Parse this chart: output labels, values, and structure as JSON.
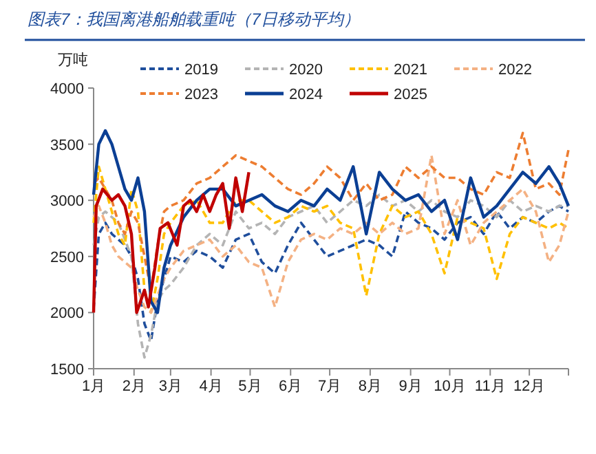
{
  "chart_data": {
    "type": "line",
    "title": "图表7：我国离港船舶载重吨（7日移动平均）",
    "ylabel": "万吨",
    "x": [
      "--01-01",
      "--01-05",
      "--01-10",
      "--01-15",
      "--01-20",
      "--01-25",
      "--01-30",
      "--02-04",
      "--02-09",
      "--02-14",
      "--02-19",
      "--02-24",
      "--03-01",
      "--03-11",
      "--03-21",
      "--03-31",
      "--04-10",
      "--04-20",
      "--04-30",
      "--05-10",
      "--05-20",
      "--05-30",
      "--06-09",
      "--06-19",
      "--06-29",
      "--07-09",
      "--07-19",
      "--07-29",
      "--08-08",
      "--08-18",
      "--08-28",
      "--09-07",
      "--09-17",
      "--09-27",
      "--10-07",
      "--10-17",
      "--10-27",
      "--11-06",
      "--11-16",
      "--11-26",
      "--12-06",
      "--12-16",
      "--12-24",
      "--12-31"
    ],
    "xlim": [
      "--01-01",
      "--12-31"
    ],
    "xticks": [
      {
        "value": "--01-01",
        "label": "1月"
      },
      {
        "value": "--02-01",
        "label": "2月"
      },
      {
        "value": "--03-01",
        "label": "3月"
      },
      {
        "value": "--04-01",
        "label": "4月"
      },
      {
        "value": "--05-01",
        "label": "5月"
      },
      {
        "value": "--06-01",
        "label": "6月"
      },
      {
        "value": "--07-01",
        "label": "7月"
      },
      {
        "value": "--08-01",
        "label": "8月"
      },
      {
        "value": "--09-01",
        "label": "9月"
      },
      {
        "value": "--10-01",
        "label": "10月"
      },
      {
        "value": "--11-01",
        "label": "11月"
      },
      {
        "value": "--12-01",
        "label": "12月"
      },
      {
        "value": "--12-31",
        "label": null
      }
    ],
    "ylim": [
      1500,
      4000
    ],
    "yticks": [
      1500,
      2000,
      2500,
      3000,
      3500,
      4000
    ],
    "grid": false,
    "legend": "top",
    "marker": "none",
    "series": [
      {
        "name": "2019",
        "color": "#1f4e9c",
        "line_style": "dashed",
        "values": [
          2030,
          2700,
          2800,
          2700,
          2650,
          2600,
          2500,
          2300,
          1900,
          1750,
          2100,
          2300,
          2500,
          2450,
          2550,
          2500,
          2400,
          2650,
          2700,
          2450,
          2350,
          2600,
          2800,
          2650,
          2500,
          2550,
          2600,
          2650,
          2600,
          2500,
          2900,
          2800,
          2750,
          2650,
          2800,
          2850,
          2700,
          2900,
          2750,
          2850,
          2800,
          2900,
          2950,
          2900
        ]
      },
      {
        "name": "2020",
        "color": "#b4b4b4",
        "line_style": "dashed",
        "values": [
          2600,
          2850,
          2900,
          2850,
          2800,
          2650,
          2500,
          1900,
          1600,
          1800,
          2100,
          2200,
          2250,
          2400,
          2600,
          2700,
          2600,
          2900,
          2750,
          2800,
          2700,
          2850,
          2900,
          2950,
          2800,
          2900,
          3000,
          2950,
          3050,
          2950,
          3000,
          2900,
          3000,
          2900,
          2850,
          3000,
          2950,
          2850,
          3000,
          2900,
          2950,
          2900,
          2950,
          2950
        ]
      },
      {
        "name": "2021",
        "color": "#ffc000",
        "line_style": "dashed",
        "values": [
          2800,
          3300,
          3100,
          2900,
          2700,
          2600,
          3100,
          2900,
          2200,
          2000,
          2300,
          2700,
          2800,
          2950,
          3000,
          2800,
          2800,
          3000,
          3000,
          2900,
          2800,
          2850,
          2950,
          2900,
          2950,
          2800,
          2750,
          2150,
          2700,
          2950,
          2850,
          2900,
          2700,
          2350,
          2850,
          2800,
          2750,
          2300,
          2700,
          2850,
          2800,
          2750,
          2800,
          2750
        ]
      },
      {
        "name": "2022",
        "color": "#f4b183",
        "line_style": "dashed",
        "values": [
          2850,
          2950,
          2800,
          2600,
          2500,
          2450,
          2400,
          2200,
          2050,
          2000,
          2150,
          2300,
          2400,
          2550,
          2600,
          2650,
          2500,
          2600,
          2450,
          2400,
          2050,
          2450,
          2650,
          2700,
          2650,
          2750,
          2700,
          2800,
          2700,
          2800,
          2700,
          2750,
          3400,
          2700,
          3000,
          2600,
          2800,
          2900,
          3000,
          3100,
          2900,
          2450,
          2600,
          2900
        ]
      },
      {
        "name": "2023",
        "color": "#ed7d31",
        "line_style": "dashed",
        "values": [
          3150,
          3200,
          3100,
          3000,
          2800,
          2700,
          2900,
          2800,
          2500,
          2200,
          2600,
          2900,
          2950,
          3000,
          3150,
          3200,
          3300,
          3400,
          3350,
          3300,
          3200,
          3100,
          3050,
          3150,
          3300,
          3200,
          3000,
          3150,
          3000,
          3050,
          3300,
          3200,
          3300,
          3200,
          3200,
          3100,
          3050,
          3250,
          3200,
          3600,
          3100,
          3150,
          3050,
          3450
        ]
      },
      {
        "name": "2024",
        "color": "#0b3f94",
        "line_style": "solid",
        "values": [
          3050,
          3500,
          3620,
          3500,
          3300,
          3100,
          3000,
          3200,
          2900,
          2100,
          2000,
          2400,
          2600,
          2850,
          3000,
          3100,
          3100,
          2950,
          3000,
          3050,
          2950,
          2900,
          3000,
          2950,
          3100,
          3000,
          3300,
          2700,
          3250,
          3100,
          3000,
          3050,
          2900,
          3000,
          2650,
          3200,
          2850,
          2950,
          3100,
          3250,
          3150,
          3300,
          3150,
          2950
        ]
      },
      {
        "name": "2025",
        "color": "#c00000",
        "line_style": "solid",
        "x": [
          "--01-01",
          "--01-03",
          "--01-08",
          "--01-15",
          "--01-20",
          "--01-25",
          "--01-30",
          "--02-03",
          "--02-09",
          "--02-12",
          "--02-17",
          "--02-21",
          "--02-27",
          "--03-06",
          "--03-11",
          "--03-16",
          "--03-21",
          "--03-26",
          "--03-31",
          "--04-05",
          "--04-10",
          "--04-15",
          "--04-20",
          "--04-25",
          "--04-30"
        ],
        "values": [
          2000,
          2950,
          3100,
          3000,
          3050,
          2950,
          2700,
          2000,
          2200,
          2050,
          2400,
          2750,
          2800,
          2600,
          2950,
          3000,
          2900,
          3050,
          2900,
          3050,
          3150,
          2750,
          3200,
          2900,
          3250
        ]
      }
    ]
  }
}
